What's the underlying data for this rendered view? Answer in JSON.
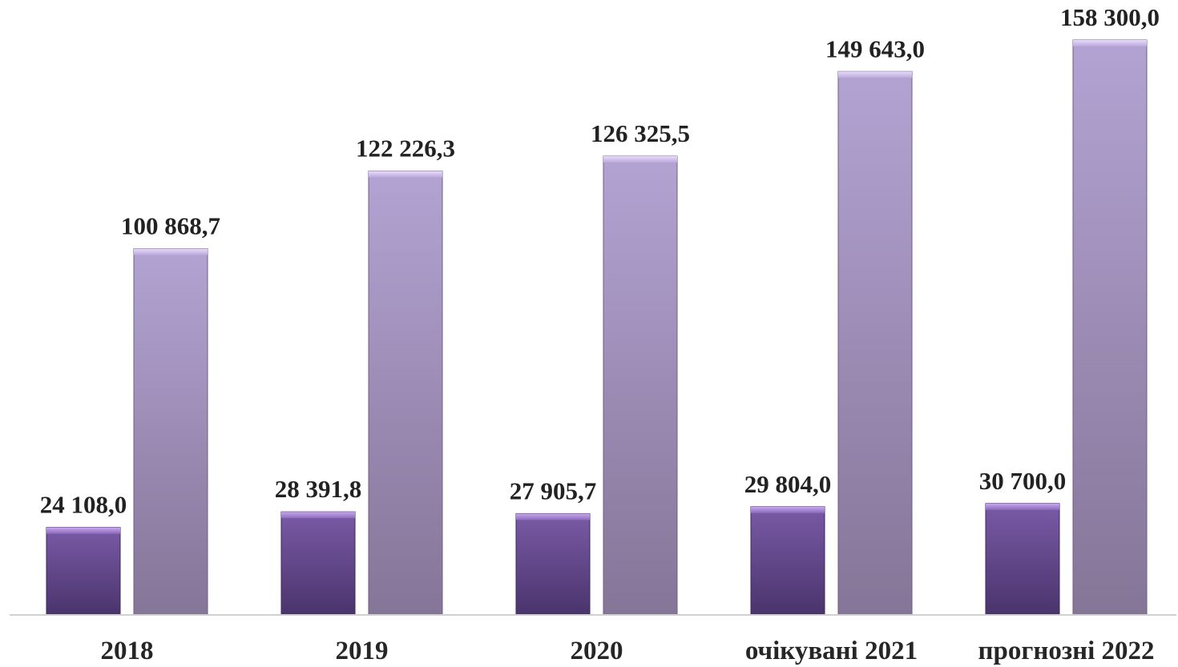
{
  "chart_data": {
    "type": "bar",
    "title": "",
    "xlabel": "",
    "ylabel": "",
    "categories": [
      "2018",
      "2019",
      "2020",
      "очікувані 2021",
      "прогнозні 2022"
    ],
    "series": [
      {
        "values": [
          24108.0,
          28391.8,
          27905.7,
          29804.0,
          30700.0
        ],
        "labels": [
          "24 108,0",
          "28 391,8",
          "27 905,7",
          "29 804,0",
          "30 700,0"
        ],
        "color": "#5e4585"
      },
      {
        "values": [
          100868.7,
          122226.3,
          126325.5,
          149643.0,
          158300.0
        ],
        "labels": [
          "100 868,7",
          "122 226,3",
          "126 325,5",
          "149 643,0",
          "158 300,0"
        ],
        "color": "#9d8cba"
      }
    ],
    "ylim": [
      0,
      158300
    ],
    "grid": false,
    "legend": "none"
  }
}
